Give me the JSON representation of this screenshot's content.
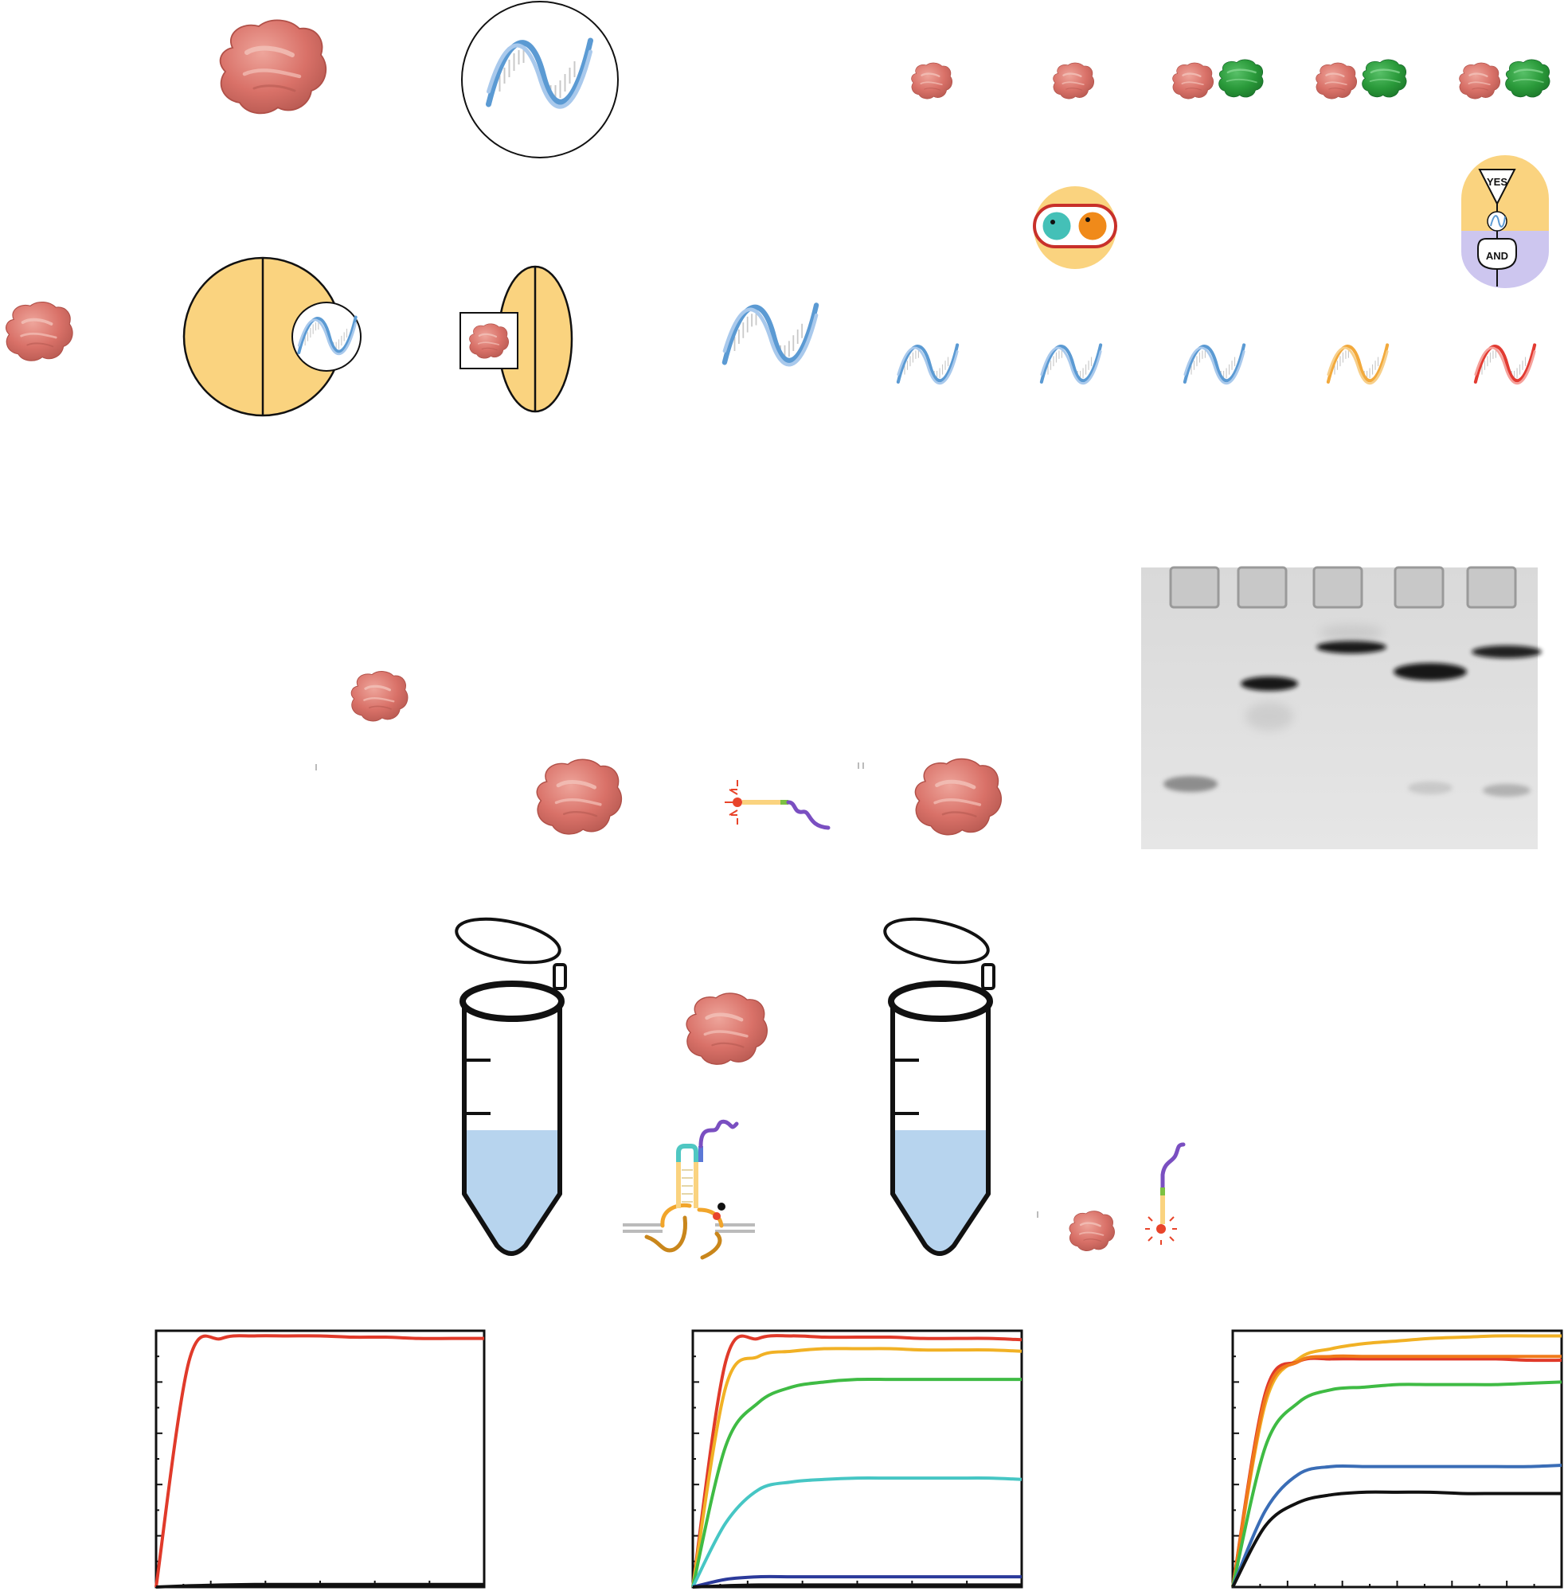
{
  "logic_gates": {
    "yes_label": "YES",
    "and_label": "AND"
  },
  "icons": {
    "protein": "protein-blob-icon",
    "dna": "dna-helix-icon",
    "tube": "microcentrifuge-tube-icon",
    "probe": "fluorescent-probe-icon",
    "gel": "gel-electrophoresis-image"
  },
  "colors": {
    "protein": "#d97168",
    "partner_protein": "#2a9a3a",
    "dna": "#6fa8dc",
    "cell_yellow": "#fad37f",
    "gate_lilac": "#cdc6ef",
    "tube_liquid": "#b7d4ee",
    "fluor": "#e8442a",
    "probe_purple": "#7a4fc1"
  },
  "gel": {
    "lanes": 5,
    "band_rows": [
      {
        "lane": 1,
        "band": "lower",
        "intensity": 0.55
      },
      {
        "lane": 2,
        "band": "middle",
        "intensity": 0.95
      },
      {
        "lane": 3,
        "band": "upper",
        "intensity": 0.95
      },
      {
        "lane": 4,
        "band": "middle-high",
        "intensity": 0.95
      },
      {
        "lane": 4,
        "band": "lower",
        "intensity": 0.25
      },
      {
        "lane": 5,
        "band": "upper",
        "intensity": 0.9
      },
      {
        "lane": 5,
        "band": "lower",
        "intensity": 0.35
      }
    ]
  },
  "chart_data": [
    {
      "type": "line",
      "x": [
        0,
        1,
        2,
        3,
        4,
        5,
        6,
        7,
        8,
        9,
        10
      ],
      "series": [
        {
          "color": "#e03a2a",
          "values": [
            0,
            88,
            97,
            98,
            98,
            98,
            97.5,
            97.5,
            97,
            97,
            97
          ]
        },
        {
          "color": "#111111",
          "values": [
            0,
            0.5,
            0.8,
            1,
            1,
            1,
            1,
            1,
            1,
            1,
            1
          ]
        }
      ],
      "ylim": [
        0,
        100
      ],
      "grid": false
    },
    {
      "type": "line",
      "x": [
        0,
        1,
        2,
        3,
        4,
        5,
        6,
        7,
        8,
        9,
        10
      ],
      "series": [
        {
          "color": "#e03a2a",
          "values": [
            0,
            88,
            97,
            98,
            97.5,
            97.5,
            97.5,
            97,
            97,
            97,
            96.5
          ]
        },
        {
          "color": "#f1b125",
          "values": [
            0,
            78,
            90,
            92,
            93,
            93,
            93,
            92.5,
            92.5,
            92.5,
            92
          ]
        },
        {
          "color": "#3fbb44",
          "values": [
            0,
            55,
            72,
            78,
            80,
            81,
            81,
            81,
            81,
            81,
            81
          ]
        },
        {
          "color": "#46c6c4",
          "values": [
            0,
            25,
            38,
            41,
            42,
            42.5,
            42.5,
            42.5,
            42.5,
            42.5,
            42
          ]
        },
        {
          "color": "#2b3a9a",
          "values": [
            0,
            3,
            4,
            4,
            4,
            4,
            4,
            4,
            4,
            4,
            4
          ]
        },
        {
          "color": "#111111",
          "values": [
            0,
            0.5,
            0.8,
            0.8,
            0.8,
            0.8,
            0.8,
            0.8,
            0.8,
            0.8,
            0.8
          ]
        }
      ],
      "ylim": [
        0,
        100
      ],
      "grid": false
    },
    {
      "type": "line",
      "x": [
        0,
        1,
        2,
        3,
        4,
        5,
        6,
        7,
        8,
        9,
        10
      ],
      "series": [
        {
          "color": "#f1b125",
          "values": [
            0,
            72,
            89,
            93,
            95,
            96,
            97,
            97.5,
            98,
            98,
            98
          ]
        },
        {
          "color": "#e03a2a",
          "values": [
            0,
            76,
            88,
            89,
            89,
            89,
            89,
            89,
            89,
            88.5,
            88.5
          ]
        },
        {
          "color": "#f07a1a",
          "values": [
            0,
            74,
            88,
            90,
            90,
            90,
            90,
            90,
            90,
            90,
            90
          ]
        },
        {
          "color": "#3fbb44",
          "values": [
            0,
            55,
            72,
            77,
            78,
            79,
            79,
            79,
            79,
            79.5,
            80
          ]
        },
        {
          "color": "#3a6db6",
          "values": [
            0,
            30,
            44,
            47,
            47,
            47,
            47,
            47,
            47,
            47,
            47.5
          ]
        },
        {
          "color": "#111111",
          "values": [
            0,
            24,
            33,
            36,
            37,
            37,
            37,
            36.5,
            36.5,
            36.5,
            36.5
          ]
        }
      ],
      "ylim": [
        0,
        100
      ],
      "grid": false
    }
  ]
}
